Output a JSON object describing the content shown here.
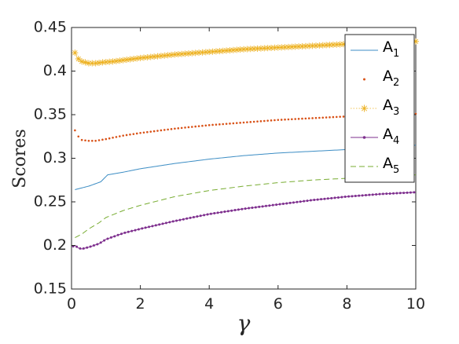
{
  "chart_data": {
    "type": "line",
    "xlabel": "γ",
    "ylabel": "Scores",
    "xlim": [
      0,
      10
    ],
    "ylim": [
      0.15,
      0.45
    ],
    "xticks": [
      0,
      2,
      4,
      6,
      8,
      10
    ],
    "yticks": [
      0.15,
      0.2,
      0.25,
      0.3,
      0.35,
      0.4,
      0.45
    ],
    "xtick_labels": [
      "0",
      "2",
      "4",
      "6",
      "8",
      "10"
    ],
    "ytick_labels": [
      "0.15",
      "0.2",
      "0.25",
      "0.3",
      "0.35",
      "0.4",
      "0.45"
    ],
    "grid": false,
    "legend_position": "top-right",
    "series": [
      {
        "name": "A",
        "name_sub": "1",
        "style": "solid-line",
        "color": "#3C8DC4",
        "x": [
          0.1,
          0.5,
          0.85,
          1.05,
          1.5,
          2,
          3,
          4,
          5,
          6,
          7,
          8,
          9,
          10
        ],
        "y": [
          0.264,
          0.268,
          0.273,
          0.281,
          0.284,
          0.288,
          0.294,
          0.299,
          0.303,
          0.306,
          0.308,
          0.31,
          0.312,
          0.315
        ]
      },
      {
        "name": "A",
        "name_sub": "2",
        "style": "dots",
        "color": "#D95319",
        "x": [
          0.1,
          0.2,
          0.3,
          0.5,
          0.7,
          1,
          1.5,
          2,
          3,
          4,
          5,
          6,
          7,
          8,
          9,
          10
        ],
        "y": [
          0.332,
          0.325,
          0.321,
          0.32,
          0.32,
          0.322,
          0.326,
          0.329,
          0.334,
          0.338,
          0.341,
          0.344,
          0.346,
          0.348,
          0.35,
          0.351
        ]
      },
      {
        "name": "A",
        "name_sub": "3",
        "style": "asterisks",
        "color": "#EDB120",
        "x": [
          0.1,
          0.2,
          0.3,
          0.5,
          0.7,
          0.9,
          1.2,
          1.6,
          2,
          3,
          4,
          5,
          6,
          7,
          8,
          9,
          10
        ],
        "y": [
          0.421,
          0.414,
          0.411,
          0.409,
          0.409,
          0.41,
          0.411,
          0.413,
          0.415,
          0.419,
          0.422,
          0.425,
          0.427,
          0.429,
          0.431,
          0.433,
          0.434
        ]
      },
      {
        "name": "A",
        "name_sub": "4",
        "style": "line-dots",
        "color": "#7E2F8E",
        "x": [
          0.05,
          0.1,
          0.2,
          0.3,
          0.5,
          0.8,
          1,
          1.5,
          2,
          3,
          4,
          5,
          6,
          7,
          8,
          9,
          10
        ],
        "y": [
          0.199,
          0.2,
          0.197,
          0.196,
          0.198,
          0.202,
          0.207,
          0.214,
          0.219,
          0.228,
          0.236,
          0.242,
          0.247,
          0.252,
          0.256,
          0.259,
          0.261
        ]
      },
      {
        "name": "A",
        "name_sub": "5",
        "style": "dashed",
        "color": "#77AC30",
        "x": [
          0.1,
          0.3,
          0.5,
          0.8,
          1,
          1.5,
          2,
          3,
          4,
          5,
          6,
          7,
          8,
          9,
          10
        ],
        "y": [
          0.209,
          0.213,
          0.219,
          0.226,
          0.232,
          0.24,
          0.246,
          0.256,
          0.263,
          0.268,
          0.272,
          0.275,
          0.277,
          0.279,
          0.281
        ]
      }
    ]
  }
}
